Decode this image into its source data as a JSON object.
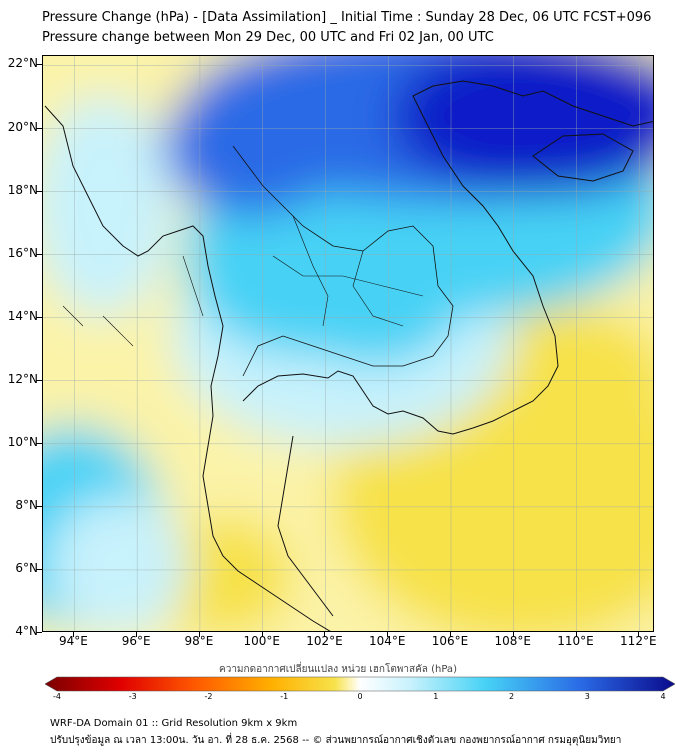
{
  "title": {
    "line1": "Pressure Change (hPa) - [Data Assimilation] _ Initial Time : Sunday 28 Dec, 06 UTC FCST+096",
    "line2": "Pressure change between Mon 29 Dec, 00 UTC and Fri 02 Jan, 00 UTC"
  },
  "map": {
    "lat_labels": [
      "22°N",
      "20°N",
      "18°N",
      "16°N",
      "14°N",
      "12°N",
      "10°N",
      "8°N",
      "6°N",
      "4°N"
    ],
    "lon_labels": [
      "94°E",
      "96°E",
      "98°E",
      "100°E",
      "102°E",
      "104°E",
      "106°E",
      "108°E",
      "110°E",
      "112°E"
    ],
    "lat_range": [
      4,
      22.3
    ],
    "lon_range": [
      93,
      112.5
    ],
    "colors": {
      "deep_blue": "#0a1ec8",
      "blue": "#2a6ae6",
      "cyan": "#46d2f5",
      "light_cyan": "#c8f2fc",
      "light_yellow": "#fbf3a8",
      "yellow": "#f7e24a",
      "coast": "#111111"
    }
  },
  "colorbar": {
    "title": "ความกดอากาศเปลี่ยนแปลง หน่วย เฮกโตพาสคัล (hPa)",
    "tick_labels": [
      "-4",
      "-3",
      "-2",
      "-1",
      "0",
      "1",
      "2",
      "3",
      "4"
    ],
    "range": [
      -4,
      4
    ]
  },
  "footer": {
    "line1": "WRF-DA Domain 01 :: Grid Resolution 9km x 9km",
    "line2": "ปรับปรุงข้อมูล ณ เวลา 13:00น. วัน อา. ที่ 28 ธ.ค. 2568 -- © ส่วนพยากรณ์อากาศเชิงตัวเลข กองพยากรณ์อากาศ กรมอุตุนิยมวิทยา"
  }
}
